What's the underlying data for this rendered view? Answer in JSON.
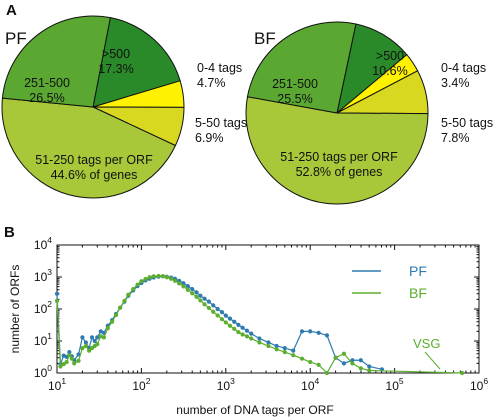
{
  "colors": {
    "pf_series": "#2e7bb0",
    "bf_series": "#5cae2e",
    "slice_0_4": "#fff200",
    "slice_5_50": "#d8d820",
    "slice_51_250": "#a8c83a",
    "slice_251_500": "#5aa832",
    "slice_500_plus": "#2a8a2a",
    "outline": "#111111"
  },
  "panel_a": {
    "label": "A"
  },
  "panel_b": {
    "label": "B"
  },
  "chart_data": [
    {
      "type": "pie",
      "panel": "A",
      "title": "PF",
      "slices": [
        {
          "key": "slice_500_plus",
          "value": 17.3,
          "label_lines": [
            ">500",
            "17.3%"
          ]
        },
        {
          "key": "slice_0_4",
          "value": 4.7,
          "label_lines": [
            "0-4 tags",
            "4.7%"
          ]
        },
        {
          "key": "slice_5_50",
          "value": 6.9,
          "label_lines": [
            "5-50 tags",
            "6.9%"
          ]
        },
        {
          "key": "slice_51_250",
          "value": 44.6,
          "label_lines": [
            "51-250 tags per ORF",
            "44.6% of genes"
          ]
        },
        {
          "key": "slice_251_500",
          "value": 26.5,
          "label_lines": [
            "251-500",
            "26.5%"
          ]
        }
      ]
    },
    {
      "type": "pie",
      "panel": "A",
      "title": "BF",
      "slices": [
        {
          "key": "slice_500_plus",
          "value": 10.6,
          "label_lines": [
            ">500",
            "10.6%"
          ]
        },
        {
          "key": "slice_0_4",
          "value": 3.4,
          "label_lines": [
            "0-4 tags",
            "3.4%"
          ]
        },
        {
          "key": "slice_5_50",
          "value": 7.8,
          "label_lines": [
            "5-50 tags",
            "7.8%"
          ]
        },
        {
          "key": "slice_51_250",
          "value": 52.8,
          "label_lines": [
            "51-250 tags per ORF",
            "52.8% of genes"
          ]
        },
        {
          "key": "slice_251_500",
          "value": 25.5,
          "label_lines": [
            "251-500",
            "25.5%"
          ]
        }
      ]
    },
    {
      "type": "line",
      "panel": "B",
      "xlabel": "number of DNA tags per ORF",
      "ylabel": "number of ORFs",
      "x_scale": "log",
      "y_scale": "log",
      "xlim": [
        10,
        1000000
      ],
      "ylim": [
        1,
        10000
      ],
      "x_ticks": [
        {
          "value": 10,
          "base": "10",
          "exp": "1"
        },
        {
          "value": 100,
          "base": "10",
          "exp": "2"
        },
        {
          "value": 1000,
          "base": "10",
          "exp": "3"
        },
        {
          "value": 10000,
          "base": "10",
          "exp": "4"
        },
        {
          "value": 100000,
          "base": "10",
          "exp": "5"
        },
        {
          "value": 1000000,
          "base": "10",
          "exp": "6"
        }
      ],
      "y_ticks": [
        {
          "value": 1,
          "base": "10",
          "exp": "0"
        },
        {
          "value": 10,
          "base": "10",
          "exp": "1"
        },
        {
          "value": 100,
          "base": "10",
          "exp": "2"
        },
        {
          "value": 1000,
          "base": "10",
          "exp": "3"
        },
        {
          "value": 10000,
          "base": "10",
          "exp": "4"
        }
      ],
      "legend_position": "top-right",
      "annotation": "VSG",
      "series": [
        {
          "name": "PF",
          "color_key": "pf_series",
          "points": [
            [
              10,
              300
            ],
            [
              11,
              1.9
            ],
            [
              12,
              3.5
            ],
            [
              13,
              3.2
            ],
            [
              14,
              4.5
            ],
            [
              15,
              3.3
            ],
            [
              16,
              2.5
            ],
            [
              18,
              3.8
            ],
            [
              20,
              13
            ],
            [
              22,
              9
            ],
            [
              24,
              6
            ],
            [
              26,
              13
            ],
            [
              28,
              10
            ],
            [
              30,
              13
            ],
            [
              33,
              20
            ],
            [
              36,
              18
            ],
            [
              40,
              30
            ],
            [
              45,
              45
            ],
            [
              50,
              70
            ],
            [
              56,
              110
            ],
            [
              63,
              170
            ],
            [
              70,
              260
            ],
            [
              80,
              380
            ],
            [
              90,
              520
            ],
            [
              100,
              650
            ],
            [
              112,
              780
            ],
            [
              125,
              880
            ],
            [
              140,
              960
            ],
            [
              160,
              1030
            ],
            [
              180,
              1050
            ],
            [
              200,
              1020
            ],
            [
              225,
              960
            ],
            [
              250,
              880
            ],
            [
              280,
              760
            ],
            [
              315,
              640
            ],
            [
              355,
              520
            ],
            [
              400,
              420
            ],
            [
              450,
              330
            ],
            [
              500,
              260
            ],
            [
              560,
              210
            ],
            [
              630,
              170
            ],
            [
              710,
              130
            ],
            [
              800,
              100
            ],
            [
              900,
              80
            ],
            [
              1000,
              62
            ],
            [
              1120,
              50
            ],
            [
              1260,
              40
            ],
            [
              1410,
              32
            ],
            [
              1580,
              26
            ],
            [
              1780,
              21
            ],
            [
              2000,
              17
            ],
            [
              2500,
              12
            ],
            [
              3200,
              9
            ],
            [
              4000,
              7
            ],
            [
              5000,
              6
            ],
            [
              6300,
              5
            ],
            [
              8000,
              20
            ],
            [
              10000,
              20
            ],
            [
              12600,
              18
            ],
            [
              15800,
              15
            ],
            [
              20000,
              3
            ],
            [
              25100,
              2
            ],
            [
              31600,
              2.5
            ],
            [
              39800,
              2.5
            ],
            [
              50100,
              1.6
            ],
            [
              70800,
              1.3
            ]
          ]
        },
        {
          "name": "BF",
          "color_key": "bf_series",
          "points": [
            [
              10,
              180
            ],
            [
              11,
              1.6
            ],
            [
              12,
              1.9
            ],
            [
              13,
              2.2
            ],
            [
              14,
              3.6
            ],
            [
              15,
              2.8
            ],
            [
              16,
              2.0
            ],
            [
              18,
              2.4
            ],
            [
              20,
              6
            ],
            [
              22,
              7
            ],
            [
              24,
              5
            ],
            [
              26,
              6
            ],
            [
              28,
              7
            ],
            [
              30,
              8
            ],
            [
              33,
              14
            ],
            [
              36,
              13
            ],
            [
              40,
              25
            ],
            [
              45,
              40
            ],
            [
              50,
              65
            ],
            [
              56,
              110
            ],
            [
              63,
              180
            ],
            [
              70,
              280
            ],
            [
              80,
              420
            ],
            [
              90,
              580
            ],
            [
              100,
              740
            ],
            [
              112,
              870
            ],
            [
              125,
              980
            ],
            [
              140,
              1050
            ],
            [
              160,
              1080
            ],
            [
              180,
              1060
            ],
            [
              200,
              980
            ],
            [
              225,
              880
            ],
            [
              250,
              760
            ],
            [
              280,
              630
            ],
            [
              315,
              510
            ],
            [
              355,
              400
            ],
            [
              400,
              310
            ],
            [
              450,
              240
            ],
            [
              500,
              185
            ],
            [
              560,
              140
            ],
            [
              630,
              108
            ],
            [
              710,
              82
            ],
            [
              800,
              63
            ],
            [
              900,
              48
            ],
            [
              1000,
              38
            ],
            [
              1120,
              30
            ],
            [
              1260,
              24
            ],
            [
              1410,
              19
            ],
            [
              1580,
              16
            ],
            [
              1780,
              14
            ],
            [
              2000,
              12
            ],
            [
              2500,
              9
            ],
            [
              3200,
              7
            ],
            [
              4000,
              5.5
            ],
            [
              5000,
              4.5
            ],
            [
              6300,
              3.6
            ],
            [
              8000,
              2.8
            ],
            [
              10000,
              2.2
            ],
            [
              12600,
              1.8
            ],
            [
              15800,
              1.0
            ],
            [
              20000,
              3
            ],
            [
              25100,
              4
            ],
            [
              31600,
              2
            ],
            [
              39800,
              1.4
            ],
            [
              50100,
              1.2
            ],
            [
              631000,
              1.0
            ]
          ]
        }
      ]
    }
  ]
}
